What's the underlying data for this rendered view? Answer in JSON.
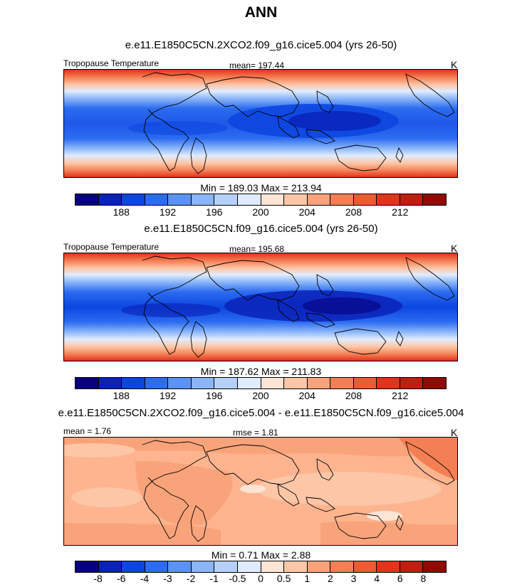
{
  "main_title": "ANN",
  "panels": [
    {
      "title": "e.e11.E1850C5CN.2XCO2.f09_g16.cice5.004 (yrs 26-50)",
      "left_label": "Tropopause Temperature",
      "center_label": "mean= 197.44",
      "right_label": "K",
      "stats": "Min = 189.03 Max = 213.94",
      "colorbar": {
        "colors": [
          "#08007f",
          "#0a22b8",
          "#0c46e0",
          "#2c6cf0",
          "#5a93f7",
          "#8ab5f9",
          "#b5d1fa",
          "#e0ecfd",
          "#fee4d4",
          "#fdc6a6",
          "#f9a37a",
          "#f47f54",
          "#ef5a31",
          "#e2331b",
          "#c01e0e",
          "#8f0b04"
        ],
        "tick_labels": [
          "188",
          "192",
          "196",
          "200",
          "204",
          "208",
          "212"
        ]
      }
    },
    {
      "title": "e.e11.E1850C5CN.f09_g16.cice5.004 (yrs 26-50)",
      "left_label": "Tropopause Temperature",
      "center_label": "mean= 195.68",
      "right_label": "K",
      "stats": "Min = 187.62 Max = 211.83",
      "colorbar": {
        "colors": [
          "#08007f",
          "#0a22b8",
          "#0c46e0",
          "#2c6cf0",
          "#5a93f7",
          "#8ab5f9",
          "#b5d1fa",
          "#e0ecfd",
          "#fee4d4",
          "#fdc6a6",
          "#f9a37a",
          "#f47f54",
          "#ef5a31",
          "#e2331b",
          "#c01e0e",
          "#8f0b04"
        ],
        "tick_labels": [
          "188",
          "192",
          "196",
          "200",
          "204",
          "208",
          "212"
        ]
      }
    },
    {
      "title": "e.e11.E1850C5CN.2XCO2.f09_g16.cice5.004 - e.e11.E1850C5CN.f09_g16.cice5.004",
      "left_label": "mean =   1.76",
      "center_label": "rmse =   1.81",
      "right_label": "K",
      "stats": "Min =   0.71 Max =   2.88",
      "colorbar": {
        "colors": [
          "#08007f",
          "#0a22b8",
          "#0c46e0",
          "#2c6cf0",
          "#5a93f7",
          "#8ab5f9",
          "#b5d1fa",
          "#e0ecfd",
          "#fee4d4",
          "#fdc6a6",
          "#f9a37a",
          "#f47f54",
          "#ef5a31",
          "#e2331b",
          "#c01e0e",
          "#8f0b04"
        ],
        "tick_labels": [
          "-8",
          "-6",
          "-4",
          "-3",
          "-2",
          "-1",
          "-0.5",
          "0",
          "0.5",
          "1",
          "2",
          "3",
          "4",
          "6",
          "8"
        ]
      }
    }
  ]
}
